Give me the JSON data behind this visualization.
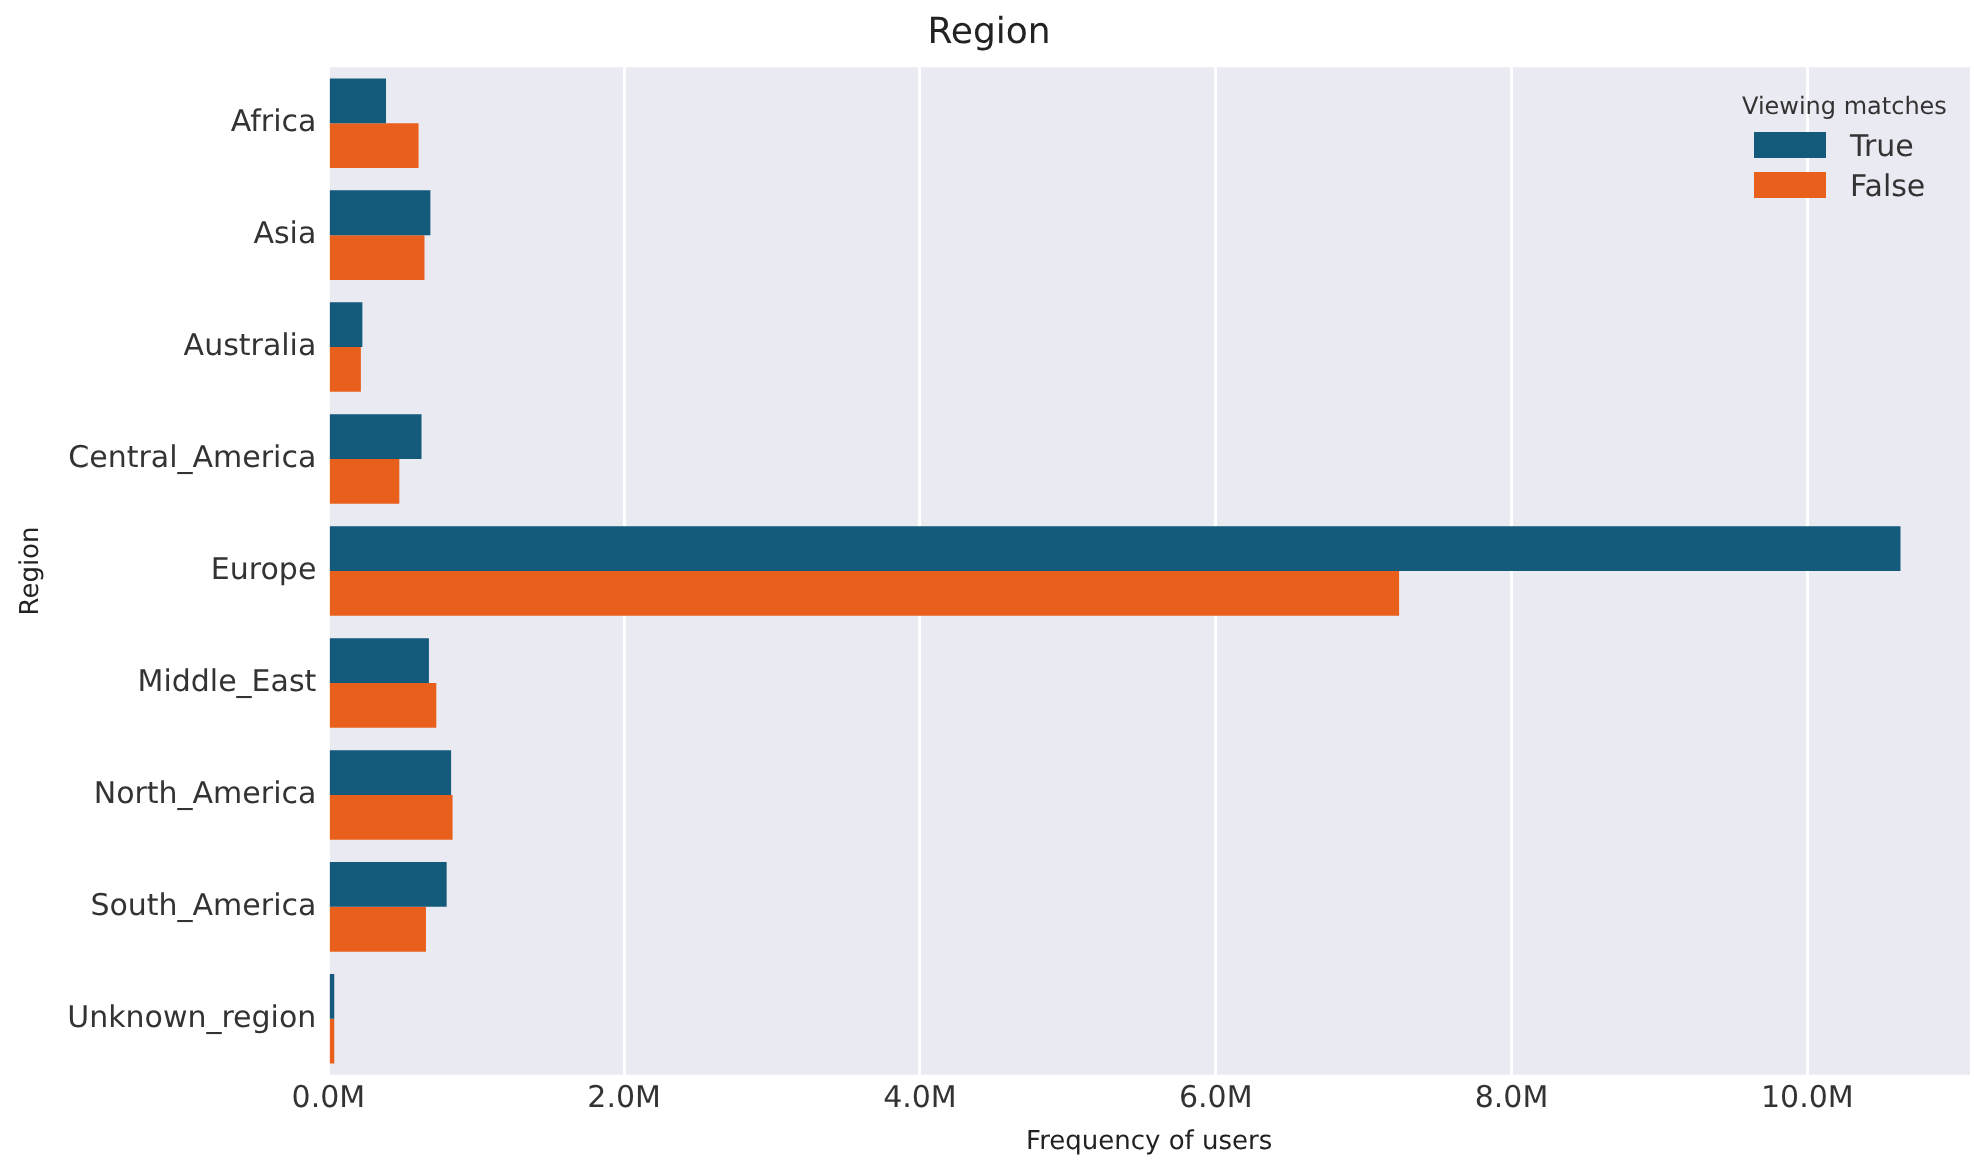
{
  "chart_data": {
    "type": "bar",
    "orientation": "horizontal",
    "title": "Region",
    "xlabel": "Frequency of users",
    "ylabel": "Region",
    "legend_title": "Viewing matches",
    "categories": [
      "Africa",
      "Asia",
      "Australia",
      "Central_America",
      "Europe",
      "Middle_East",
      "North_America",
      "South_America",
      "Unknown_region"
    ],
    "series": [
      {
        "name": "True",
        "color": "#135a7b",
        "values": [
          0.39,
          0.69,
          0.23,
          0.63,
          10.63,
          0.68,
          0.83,
          0.8,
          0.04
        ]
      },
      {
        "name": "False",
        "color": "#e8601c",
        "values": [
          0.61,
          0.65,
          0.22,
          0.48,
          7.24,
          0.73,
          0.84,
          0.66,
          0.04
        ]
      }
    ],
    "xlim": [
      0,
      11.1
    ],
    "xticks": [
      {
        "value": 0,
        "label": "0.0M"
      },
      {
        "value": 2,
        "label": "2.0M"
      },
      {
        "value": 4,
        "label": "4.0M"
      },
      {
        "value": 6,
        "label": "6.0M"
      },
      {
        "value": 8,
        "label": "8.0M"
      },
      {
        "value": 10,
        "label": "10.0M"
      }
    ],
    "grid": "x",
    "legend": "top right"
  }
}
